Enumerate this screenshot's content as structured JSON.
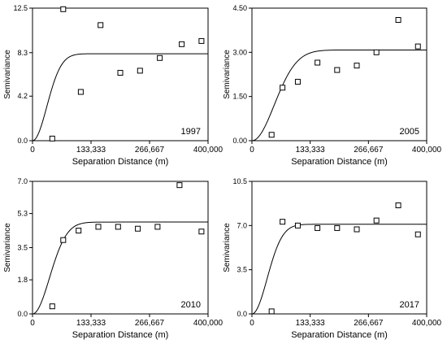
{
  "chart_data": [
    {
      "type": "scatter",
      "label": "1997",
      "xlabel": "Separation Distance (m)",
      "ylabel": "Semivariance",
      "xlim": [
        0,
        400000
      ],
      "ylim": [
        0,
        12.5
      ],
      "x_ticks": [
        0,
        133333,
        266667,
        400000
      ],
      "x_tick_labels": [
        "0",
        "133,333",
        "266,667",
        "400,000"
      ],
      "y_ticks": [
        0,
        4.2,
        8.3,
        12.5
      ],
      "y_tick_labels": [
        "0.0",
        "4.2",
        "8.3",
        "12.5"
      ],
      "points": {
        "x": [
          45000,
          70000,
          110000,
          155000,
          200000,
          245000,
          290000,
          340000,
          385000
        ],
        "y": [
          0.2,
          12.4,
          4.6,
          10.9,
          6.4,
          6.6,
          7.8,
          9.1,
          9.4
        ]
      },
      "model": {
        "type": "gaussian",
        "nugget": 0,
        "sill": 8.2,
        "range": 80000
      }
    },
    {
      "type": "scatter",
      "label": "2005",
      "xlabel": "Separation Distance (m)",
      "ylabel": "Semivariance",
      "xlim": [
        0,
        400000
      ],
      "ylim": [
        0,
        4.5
      ],
      "x_ticks": [
        0,
        133333,
        266667,
        400000
      ],
      "x_tick_labels": [
        "0",
        "133,333",
        "266,667",
        "400,000"
      ],
      "y_ticks": [
        0,
        1.5,
        3.0,
        4.5
      ],
      "y_tick_labels": [
        "0.00",
        "1.50",
        "3.00",
        "4.50"
      ],
      "points": {
        "x": [
          45000,
          70000,
          105000,
          150000,
          195000,
          240000,
          285000,
          335000,
          380000
        ],
        "y": [
          0.2,
          1.8,
          2.0,
          2.65,
          2.4,
          2.55,
          3.0,
          4.1,
          3.2
        ]
      },
      "model": {
        "type": "gaussian",
        "nugget": 0,
        "sill": 3.08,
        "range": 125000
      }
    },
    {
      "type": "scatter",
      "label": "2010",
      "xlabel": "Separation Distance (m)",
      "ylabel": "Semivariance",
      "xlim": [
        0,
        400000
      ],
      "ylim": [
        0,
        7.0
      ],
      "x_ticks": [
        0,
        133333,
        266667,
        400000
      ],
      "x_tick_labels": [
        "0",
        "133,333",
        "266,667",
        "400,000"
      ],
      "y_ticks": [
        0,
        1.8,
        3.5,
        5.3,
        7.0
      ],
      "y_tick_labels": [
        "0.0",
        "1.8",
        "3.5",
        "5.3",
        "7.0"
      ],
      "points": {
        "x": [
          45000,
          70000,
          105000,
          150000,
          195000,
          240000,
          285000,
          335000,
          385000
        ],
        "y": [
          0.4,
          3.9,
          4.4,
          4.6,
          4.6,
          4.5,
          4.6,
          6.8,
          4.35
        ]
      },
      "model": {
        "type": "gaussian",
        "nugget": 0,
        "sill": 4.85,
        "range": 95000
      }
    },
    {
      "type": "scatter",
      "label": "2017",
      "xlabel": "Separation Distance (m)",
      "ylabel": "Semivariance",
      "xlim": [
        0,
        400000
      ],
      "ylim": [
        0,
        10.5
      ],
      "x_ticks": [
        0,
        133333,
        266667,
        400000
      ],
      "x_tick_labels": [
        "0",
        "133,333",
        "266,667",
        "400,000"
      ],
      "y_ticks": [
        0,
        3.5,
        7.0,
        10.5
      ],
      "y_tick_labels": [
        "0.0",
        "3.5",
        "7.0",
        "10.5"
      ],
      "points": {
        "x": [
          45000,
          70000,
          105000,
          150000,
          195000,
          240000,
          285000,
          335000,
          380000
        ],
        "y": [
          0.2,
          7.3,
          7.0,
          6.8,
          6.8,
          6.7,
          7.4,
          8.6,
          6.3
        ]
      },
      "model": {
        "type": "gaussian",
        "nugget": 0,
        "sill": 7.1,
        "range": 85000
      }
    }
  ]
}
